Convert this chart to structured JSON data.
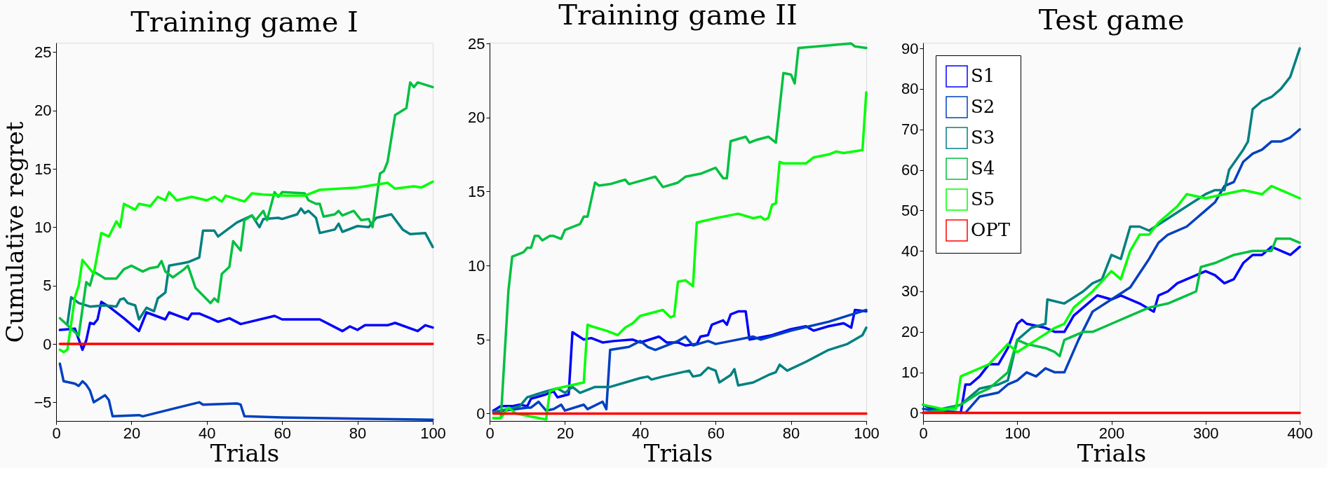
{
  "chart_data": [
    {
      "type": "line",
      "title": "Training game I",
      "xlabel": "Trials",
      "ylabel": "Cumulative regret",
      "xlim": [
        0,
        100
      ],
      "xticks": [
        0,
        20,
        40,
        60,
        80,
        100
      ],
      "ylim": [
        -6.6,
        25.8
      ],
      "yticks": [
        -5,
        0,
        5,
        10,
        15,
        20,
        25
      ],
      "grid": false,
      "legend": false,
      "series": [
        {
          "color": "#0000ff",
          "x": [
            1,
            5,
            7,
            8,
            9,
            10,
            11,
            12,
            14,
            18,
            22,
            24,
            29,
            30,
            35,
            36,
            38,
            41,
            43,
            46,
            49,
            58,
            60,
            70,
            76,
            78,
            80,
            82,
            88,
            90,
            96,
            98,
            100
          ],
          "values": [
            1.2,
            1.3,
            -0.5,
            0.3,
            1.8,
            1.7,
            2.1,
            3.6,
            3.2,
            2.2,
            1.1,
            2.7,
            2.1,
            2.7,
            2.1,
            2.6,
            2.6,
            2.2,
            1.9,
            2.2,
            1.7,
            2.4,
            2.1,
            2.1,
            1.1,
            1.5,
            1.2,
            1.6,
            1.6,
            1.8,
            1.1,
            1.6,
            1.4
          ]
        },
        {
          "color": "#0040c0",
          "x": [
            1,
            2,
            5,
            6,
            7,
            8,
            9,
            10,
            13,
            14,
            15,
            22,
            23,
            38,
            39,
            48,
            49,
            50,
            60,
            80,
            100
          ],
          "values": [
            -1.7,
            -3.2,
            -3.4,
            -3.6,
            -3.2,
            -3.5,
            -4.0,
            -5.0,
            -4.4,
            -4.8,
            -6.2,
            -6.1,
            -6.2,
            -5.0,
            -5.2,
            -5.1,
            -5.2,
            -6.2,
            -6.3,
            -6.4,
            -6.5
          ]
        },
        {
          "color": "#008080",
          "x": [
            3,
            4,
            6,
            9,
            13,
            16,
            17,
            18,
            19,
            21,
            22,
            24,
            26,
            27,
            29,
            30,
            35,
            38,
            39,
            42,
            43,
            48,
            52,
            54,
            55,
            59,
            60,
            64,
            65,
            66,
            67,
            69,
            70,
            74,
            75,
            76,
            80,
            83,
            85,
            89,
            92,
            94,
            98,
            100
          ],
          "values": [
            1.7,
            4.0,
            3.5,
            3.2,
            3.3,
            3.2,
            3.8,
            3.9,
            3.5,
            3.3,
            2.1,
            3.1,
            2.8,
            3.9,
            4.4,
            6.7,
            7.0,
            7.4,
            9.7,
            9.7,
            9.2,
            10.4,
            11.0,
            10.0,
            10.7,
            10.8,
            10.7,
            11.1,
            11.6,
            11.2,
            11.4,
            10.8,
            9.5,
            9.8,
            10.3,
            9.6,
            10.1,
            10.0,
            10.8,
            11.1,
            9.8,
            9.4,
            9.5,
            8.3
          ]
        },
        {
          "color": "#00c040",
          "x": [
            1,
            6,
            8,
            9,
            10,
            12,
            13,
            16,
            18,
            20,
            23,
            25,
            27,
            28,
            29,
            31,
            34,
            35,
            37,
            41,
            42,
            43,
            44,
            46,
            47,
            48,
            49,
            50,
            52,
            53,
            55,
            56,
            58,
            59,
            60,
            66,
            67,
            69,
            70,
            71,
            74,
            75,
            76,
            79,
            81,
            83,
            84,
            86,
            87,
            88,
            90,
            91,
            93,
            94,
            95,
            96,
            100
          ],
          "values": [
            2.2,
            0.7,
            5.3,
            5.0,
            6.2,
            5.8,
            5.6,
            5.6,
            6.4,
            6.7,
            6.2,
            6.5,
            6.6,
            7.1,
            6.2,
            5.7,
            6.4,
            6.7,
            4.8,
            3.5,
            3.9,
            3.6,
            6.0,
            6.6,
            8.8,
            8.4,
            8.0,
            10.6,
            11.0,
            10.6,
            11.4,
            10.6,
            13.0,
            12.6,
            13.0,
            12.9,
            12.3,
            12.0,
            12.0,
            10.9,
            11.1,
            11.4,
            11.0,
            11.4,
            10.6,
            10.7,
            10.0,
            14.6,
            14.8,
            15.6,
            19.6,
            19.8,
            20.2,
            22.4,
            22.0,
            22.4,
            22.0
          ]
        },
        {
          "color": "#00ff00",
          "x": [
            1,
            2,
            3,
            5,
            6,
            7,
            10,
            12,
            14,
            16,
            17,
            18,
            21,
            22,
            25,
            27,
            29,
            30,
            32,
            36,
            40,
            42,
            44,
            45,
            50,
            52,
            55,
            61,
            66,
            70,
            80,
            88,
            90,
            95,
            97,
            100
          ],
          "values": [
            -0.5,
            -0.7,
            -0.5,
            4.0,
            5.0,
            7.2,
            6.0,
            9.5,
            9.2,
            10.5,
            10.0,
            12.0,
            11.5,
            12.0,
            11.8,
            12.6,
            12.3,
            13.0,
            12.3,
            12.6,
            12.3,
            12.6,
            12.2,
            12.7,
            12.2,
            12.9,
            12.8,
            12.7,
            12.7,
            13.2,
            13.4,
            13.8,
            13.3,
            13.5,
            13.4,
            13.9
          ]
        },
        {
          "color": "#ff0000",
          "x": [
            1,
            100
          ],
          "values": [
            0,
            0
          ]
        }
      ]
    },
    {
      "type": "line",
      "title": "Training game II",
      "xlabel": "Trials",
      "xlim": [
        0,
        100
      ],
      "xticks": [
        0,
        20,
        40,
        60,
        80,
        100
      ],
      "ylim": [
        -0.5,
        25.05
      ],
      "yticks": [
        0,
        5,
        10,
        15,
        20,
        25
      ],
      "grid": false,
      "legend": false,
      "series": [
        {
          "color": "#0000ff",
          "x": [
            1,
            3,
            6,
            8,
            10,
            11,
            15,
            17,
            18,
            21,
            22,
            25,
            27,
            30,
            33,
            38,
            40,
            45,
            47,
            50,
            52,
            55,
            56,
            58,
            59,
            62,
            63,
            64,
            66,
            68,
            69,
            75,
            80,
            84,
            86,
            90,
            94,
            96,
            97,
            100
          ],
          "values": [
            0.2,
            0.5,
            0.5,
            0.6,
            0.5,
            1.0,
            1.3,
            1.5,
            1.1,
            1.3,
            5.5,
            5.0,
            5.1,
            4.8,
            4.9,
            5.0,
            4.8,
            5.2,
            4.8,
            4.8,
            4.6,
            4.7,
            5.2,
            5.3,
            6.0,
            6.3,
            6.0,
            6.7,
            6.9,
            6.9,
            5.0,
            5.3,
            5.7,
            5.9,
            5.6,
            5.9,
            6.1,
            5.8,
            7.0,
            6.9
          ]
        },
        {
          "color": "#0040c0",
          "x": [
            1,
            10,
            11,
            13,
            15,
            17,
            19,
            20,
            25,
            26,
            30,
            31,
            32,
            37,
            40,
            42,
            44,
            50,
            52,
            54,
            58,
            60,
            64,
            70,
            72,
            80,
            90,
            95,
            100
          ],
          "values": [
            0.1,
            0.4,
            0.4,
            0.8,
            0.2,
            0.3,
            0.6,
            0.2,
            0.6,
            0.3,
            0.8,
            0.3,
            4.3,
            4.5,
            4.9,
            4.5,
            4.3,
            4.9,
            5.2,
            4.6,
            4.9,
            4.7,
            4.9,
            5.2,
            5.0,
            5.6,
            6.2,
            6.6,
            7.0
          ]
        },
        {
          "color": "#008080",
          "x": [
            1,
            5,
            8,
            10,
            15,
            18,
            20,
            22,
            24,
            28,
            32,
            40,
            42,
            43,
            46,
            53,
            54,
            56,
            58,
            60,
            61,
            64,
            65,
            66,
            70,
            74,
            76,
            77,
            79,
            84,
            90,
            95,
            99,
            100
          ],
          "values": [
            0.1,
            0.3,
            0.5,
            1.1,
            1.5,
            1.7,
            1.4,
            1.8,
            1.4,
            1.8,
            1.8,
            2.4,
            2.5,
            2.3,
            2.5,
            2.9,
            2.5,
            2.6,
            3.1,
            2.9,
            2.1,
            2.6,
            3.0,
            1.9,
            2.1,
            2.6,
            2.8,
            3.3,
            2.9,
            3.5,
            4.3,
            4.7,
            5.3,
            5.8
          ]
        },
        {
          "color": "#00c040",
          "x": [
            1,
            3,
            5,
            6,
            9,
            10,
            11,
            12,
            13,
            14,
            16,
            17,
            19,
            20,
            24,
            25,
            26,
            28,
            29,
            32,
            36,
            37,
            44,
            46,
            50,
            52,
            56,
            60,
            62,
            63,
            64,
            68,
            69,
            71,
            74,
            76,
            78,
            80,
            81,
            82,
            87,
            96,
            97,
            100
          ],
          "values": [
            -0.3,
            -0.3,
            8.3,
            10.6,
            10.9,
            11.2,
            11.2,
            12.0,
            12.0,
            11.7,
            12.0,
            12.0,
            11.8,
            12.4,
            12.8,
            13.3,
            13.3,
            15.6,
            15.4,
            15.5,
            15.8,
            15.5,
            16.0,
            15.3,
            15.6,
            16.0,
            16.2,
            16.6,
            15.9,
            15.9,
            18.4,
            18.7,
            18.3,
            18.5,
            18.7,
            18.3,
            23.0,
            22.9,
            22.3,
            24.7,
            24.8,
            25.0,
            24.8,
            24.7
          ]
        },
        {
          "color": "#00ff00",
          "x": [
            1,
            3,
            5,
            7,
            9,
            11,
            13,
            15,
            16,
            18,
            25,
            26,
            27,
            31,
            34,
            36,
            38,
            40,
            46,
            48,
            49,
            50,
            52,
            54,
            55,
            60,
            66,
            70,
            72,
            73,
            74,
            75,
            76,
            77,
            78,
            80,
            84,
            86,
            90,
            92,
            94,
            99,
            100
          ],
          "values": [
            -0.3,
            -0.3,
            0.4,
            0.0,
            -0.1,
            -0.2,
            -0.3,
            -0.4,
            1.5,
            1.7,
            2.1,
            6.0,
            5.9,
            5.6,
            5.3,
            5.8,
            6.1,
            6.6,
            7.0,
            6.5,
            6.6,
            8.9,
            9.0,
            8.6,
            12.9,
            13.2,
            13.5,
            13.2,
            13.3,
            13.1,
            13.2,
            14.1,
            14.2,
            17.0,
            16.9,
            16.9,
            16.9,
            17.3,
            17.5,
            17.7,
            17.6,
            17.8,
            21.7
          ]
        },
        {
          "color": "#ff0000",
          "x": [
            1,
            100
          ],
          "values": [
            0,
            0
          ]
        }
      ]
    },
    {
      "type": "line",
      "title": "Test game",
      "xlabel": "Trials",
      "xlim": [
        0,
        400
      ],
      "xticks": [
        0,
        100,
        200,
        300,
        400
      ],
      "ylim": [
        -2,
        91.4
      ],
      "yticks": [
        0,
        10,
        20,
        30,
        40,
        50,
        60,
        70,
        80,
        90
      ],
      "grid": false,
      "legend": "top left",
      "series": [
        {
          "name": "S1",
          "color": "#0000ff",
          "x": [
            0,
            10,
            20,
            40,
            45,
            50,
            60,
            70,
            80,
            90,
            100,
            105,
            110,
            130,
            140,
            150,
            160,
            175,
            185,
            200,
            210,
            230,
            245,
            250,
            260,
            270,
            290,
            300,
            310,
            320,
            330,
            340,
            350,
            360,
            370,
            380,
            390,
            400
          ],
          "values": [
            2,
            1,
            0.5,
            0,
            7,
            7,
            9,
            12,
            12,
            16,
            22,
            23,
            22,
            21,
            20,
            20,
            24,
            27,
            29,
            28,
            29,
            27,
            25,
            29,
            30,
            32,
            34,
            35,
            34,
            32,
            33,
            37,
            39,
            39,
            41,
            40,
            39,
            41
          ]
        },
        {
          "name": "S2",
          "color": "#0040c0",
          "x": [
            0,
            20,
            45,
            60,
            80,
            90,
            100,
            110,
            120,
            130,
            140,
            150,
            165,
            180,
            200,
            220,
            240,
            250,
            260,
            280,
            300,
            310,
            320,
            330,
            340,
            350,
            360,
            370,
            380,
            390,
            400
          ],
          "values": [
            1,
            0.5,
            0,
            4,
            5,
            7,
            8,
            10,
            9,
            11,
            10,
            10,
            18,
            25,
            28,
            31,
            38,
            42,
            44,
            46,
            50,
            52,
            56,
            57,
            62,
            64,
            65,
            67,
            67,
            68,
            70
          ]
        },
        {
          "name": "S3",
          "color": "#008080",
          "x": [
            0,
            20,
            40,
            50,
            60,
            80,
            90,
            100,
            115,
            130,
            132,
            150,
            170,
            180,
            190,
            200,
            210,
            220,
            230,
            240,
            260,
            280,
            300,
            310,
            320,
            325,
            340,
            345,
            350,
            360,
            370,
            380,
            390,
            400
          ],
          "values": [
            0,
            1,
            2,
            4,
            6,
            7,
            8,
            18,
            21,
            22,
            28,
            27,
            30,
            32,
            33,
            39,
            38,
            46,
            46,
            45,
            48,
            51,
            54,
            55,
            55,
            60,
            65,
            67,
            75,
            77,
            78,
            80,
            83,
            90
          ]
        },
        {
          "name": "S4",
          "color": "#00c040",
          "x": [
            0,
            20,
            40,
            60,
            70,
            90,
            100,
            110,
            130,
            140,
            145,
            150,
            170,
            180,
            200,
            220,
            240,
            260,
            280,
            290,
            295,
            310,
            330,
            350,
            370,
            375,
            390,
            400
          ],
          "values": [
            0,
            0.5,
            2,
            5,
            6,
            10,
            18,
            17,
            16,
            15,
            14,
            18,
            20,
            20,
            22,
            24,
            26,
            27,
            29,
            30,
            36,
            37,
            39,
            40,
            40,
            43,
            43,
            42
          ]
        },
        {
          "name": "S5",
          "color": "#00ff00",
          "x": [
            0,
            20,
            35,
            40,
            50,
            70,
            90,
            100,
            120,
            140,
            150,
            160,
            180,
            200,
            210,
            220,
            230,
            240,
            250,
            270,
            280,
            300,
            340,
            360,
            370,
            380,
            400
          ],
          "values": [
            2,
            1,
            1,
            9,
            10,
            12,
            17,
            15,
            18,
            21,
            22,
            26,
            30,
            35,
            33,
            40,
            44,
            44,
            47,
            51,
            54,
            53,
            55,
            54,
            56,
            55,
            53
          ]
        },
        {
          "name": "OPT",
          "color": "#ff0000",
          "x": [
            0,
            400
          ],
          "values": [
            0,
            0
          ]
        }
      ]
    }
  ]
}
